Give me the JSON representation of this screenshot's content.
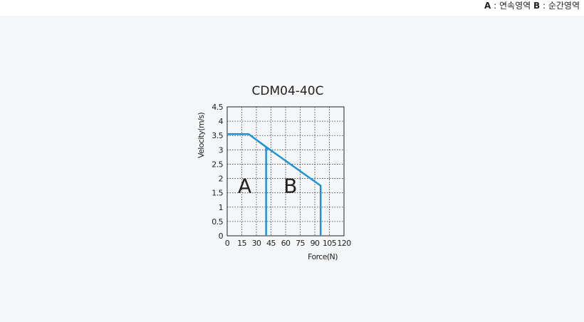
{
  "legend": {
    "a_key": "A",
    "a_text": " : 연속영역 ",
    "b_key": "B",
    "b_text": " : 순간영역"
  },
  "chart_data": {
    "type": "line",
    "title": "CDM04-40C",
    "xlabel": "Force(N)",
    "ylabel": "Velocity(m/s)",
    "xlim": [
      0,
      120
    ],
    "ylim": [
      0,
      4.5
    ],
    "x_ticks": [
      "0",
      "15",
      "30",
      "45",
      "60",
      "75",
      "90",
      "105",
      "120"
    ],
    "y_ticks": [
      "0",
      "0.5",
      "1",
      "1.5",
      "2",
      "2.5",
      "3",
      "3.5",
      "4",
      "4.5"
    ],
    "grid": true,
    "series": [
      {
        "color": "#1f93d6",
        "x": [
          0,
          22,
          40,
          96,
          96
        ],
        "y": [
          3.55,
          3.55,
          3.1,
          1.75,
          0
        ]
      },
      {
        "color": "#1f93d6",
        "x": [
          40,
          40
        ],
        "y": [
          3.1,
          0
        ]
      }
    ],
    "annotations": [
      {
        "text": "A",
        "x": 18,
        "y": 1.75
      },
      {
        "text": "B",
        "x": 65,
        "y": 1.75
      }
    ]
  }
}
